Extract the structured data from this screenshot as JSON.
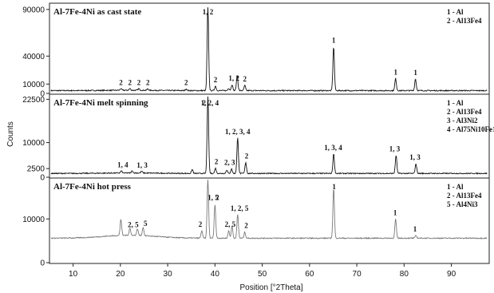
{
  "chart_data": {
    "type": "line",
    "xlabel": "Position [°2Theta]",
    "ylabel": "Counts",
    "xlim": [
      5,
      98
    ],
    "x_ticks": [
      10,
      20,
      30,
      40,
      50,
      60,
      70,
      80,
      90
    ],
    "grid": false,
    "legend_position": "top-right",
    "panels": [
      {
        "title": "Al-7Fe-4Ni as cast state",
        "color": "#111111",
        "ylim": [
          0,
          95000
        ],
        "y_ticks": [
          90000,
          40000,
          10000,
          0
        ],
        "baseline": 3000,
        "legend": [
          "1 - Al",
          "2 - Al13Fe4"
        ],
        "peaks": [
          {
            "x": 20.1,
            "y": 4800
          },
          {
            "x": 22.0,
            "y": 4700
          },
          {
            "x": 23.9,
            "y": 4800
          },
          {
            "x": 25.8,
            "y": 4600
          },
          {
            "x": 33.9,
            "y": 4800
          },
          {
            "x": 38.5,
            "y": 92000
          },
          {
            "x": 40.1,
            "y": 7800
          },
          {
            "x": 42.9,
            "y": 5500
          },
          {
            "x": 43.6,
            "y": 9500
          },
          {
            "x": 44.7,
            "y": 19000
          },
          {
            "x": 46.3,
            "y": 8500
          },
          {
            "x": 65.1,
            "y": 50000
          },
          {
            "x": 78.2,
            "y": 16000
          },
          {
            "x": 82.4,
            "y": 15500
          }
        ],
        "labels": [
          {
            "x": 20.1,
            "text": "2"
          },
          {
            "x": 22.0,
            "text": "2"
          },
          {
            "x": 23.9,
            "text": "2"
          },
          {
            "x": 25.8,
            "text": "2"
          },
          {
            "x": 33.9,
            "text": "2"
          },
          {
            "x": 38.5,
            "text": "1, 2"
          },
          {
            "x": 40.1,
            "text": "2"
          },
          {
            "x": 44.0,
            "text": "1, 2"
          },
          {
            "x": 46.3,
            "text": "2"
          },
          {
            "x": 65.1,
            "text": "1"
          },
          {
            "x": 78.2,
            "text": "1"
          },
          {
            "x": 82.4,
            "text": "1"
          }
        ]
      },
      {
        "title": "Al-7Fe-4Ni melt spinning",
        "color": "#111111",
        "ylim": [
          0,
          23500
        ],
        "y_ticks": [
          22500,
          10000,
          2500,
          0
        ],
        "baseline": 1100,
        "legend": [
          "1 - Al",
          "2 - Al13Fe4",
          "3 - Al3Ni2",
          "4 - Al75Ni10Fe15"
        ],
        "peaks": [
          {
            "x": 20.2,
            "y": 1700
          },
          {
            "x": 22.5,
            "y": 1700
          },
          {
            "x": 24.5,
            "y": 1600
          },
          {
            "x": 35.2,
            "y": 2200
          },
          {
            "x": 38.5,
            "y": 23200
          },
          {
            "x": 40.1,
            "y": 2600
          },
          {
            "x": 42.5,
            "y": 2100
          },
          {
            "x": 43.5,
            "y": 2400
          },
          {
            "x": 44.8,
            "y": 11300
          },
          {
            "x": 46.5,
            "y": 4300
          },
          {
            "x": 65.1,
            "y": 6700
          },
          {
            "x": 78.3,
            "y": 6300
          },
          {
            "x": 82.5,
            "y": 3900
          }
        ],
        "labels": [
          {
            "x": 20.5,
            "text": "1, 4"
          },
          {
            "x": 24.6,
            "text": "1, 3"
          },
          {
            "x": 37.7,
            "text": "2"
          },
          {
            "x": 38.9,
            "text": "1, 2, 4"
          },
          {
            "x": 40.3,
            "text": "2"
          },
          {
            "x": 43.1,
            "text": "2, 3"
          },
          {
            "x": 44.8,
            "text": "1, 2, 3, 4"
          },
          {
            "x": 46.7,
            "text": "2"
          },
          {
            "x": 65.0,
            "text": "1, 3, 4"
          },
          {
            "x": 78.0,
            "text": "1, 3"
          },
          {
            "x": 82.3,
            "text": "1, 3"
          }
        ]
      },
      {
        "title": "Al-7Fe-4Ni hot press",
        "color": "#7a7a7a",
        "ylim": [
          0,
          19000
        ],
        "y_ticks": [
          10000,
          0
        ],
        "baseline": 5600,
        "legend": [
          "1 - Al",
          "2 - Al13Fe4",
          "5 - Al4Ni3"
        ],
        "peaks": [
          {
            "x": 20.1,
            "y": 9300
          },
          {
            "x": 22.0,
            "y": 7200
          },
          {
            "x": 23.6,
            "y": 7100
          },
          {
            "x": 24.8,
            "y": 7500
          },
          {
            "x": 37.2,
            "y": 7300
          },
          {
            "x": 38.5,
            "y": 19000
          },
          {
            "x": 40.0,
            "y": 13400
          },
          {
            "x": 42.9,
            "y": 7300
          },
          {
            "x": 43.6,
            "y": 8400
          },
          {
            "x": 44.8,
            "y": 11000
          },
          {
            "x": 46.3,
            "y": 7000
          },
          {
            "x": 65.1,
            "y": 17000
          },
          {
            "x": 78.2,
            "y": 10000
          },
          {
            "x": 82.5,
            "y": 6200
          }
        ],
        "labels": [
          {
            "x": 22.7,
            "text": "2, 5"
          },
          {
            "x": 25.3,
            "text": "5"
          },
          {
            "x": 36.9,
            "text": "2"
          },
          {
            "x": 39.6,
            "text": "1, 5"
          },
          {
            "x": 40.5,
            "text": "2"
          },
          {
            "x": 43.2,
            "text": "2, 5"
          },
          {
            "x": 45.2,
            "text": "1, 2, 5"
          },
          {
            "x": 46.6,
            "text": "2"
          },
          {
            "x": 65.2,
            "text": "1"
          },
          {
            "x": 78.1,
            "text": "1"
          },
          {
            "x": 82.3,
            "text": "1"
          }
        ]
      }
    ]
  }
}
